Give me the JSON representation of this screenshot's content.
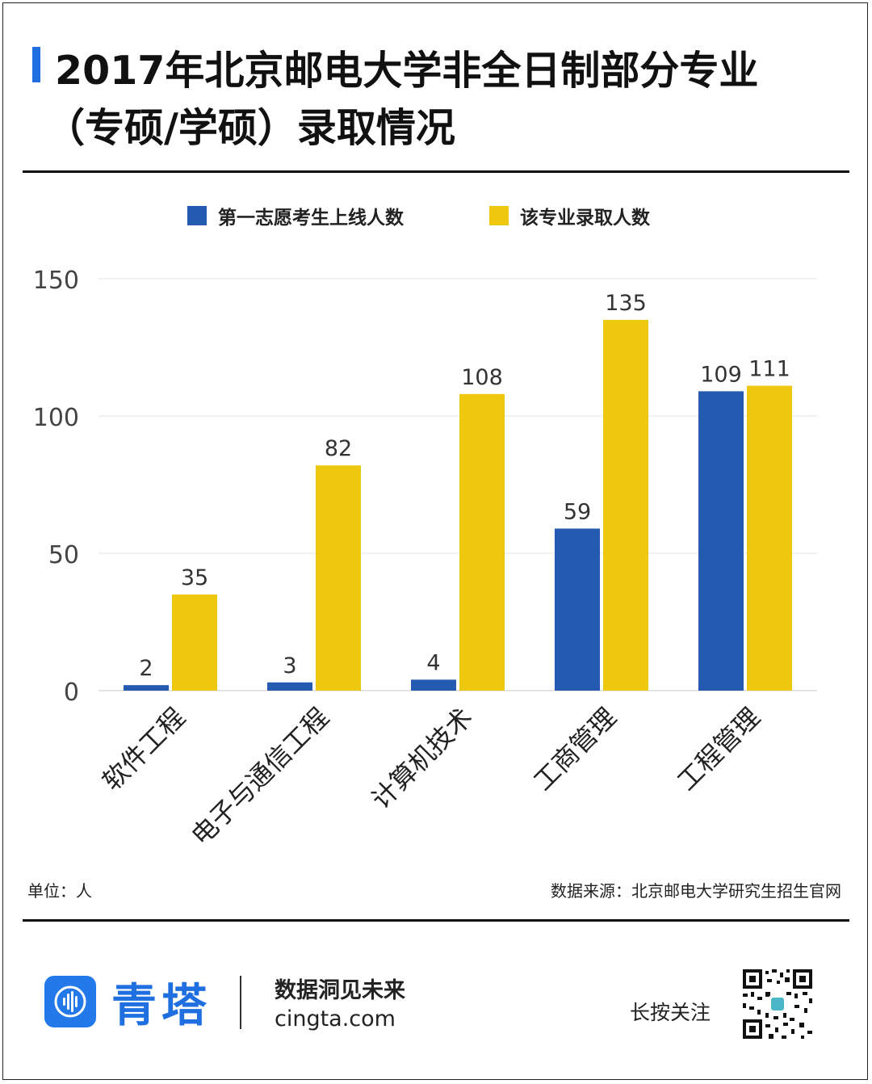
{
  "header": {
    "title_line1": "2017年北京邮电大学非全日制部分专业",
    "title_line2": "（专硕/学硕）录取情况"
  },
  "colors": {
    "accent": "#1f6fe0",
    "series_blue": "#245bb0",
    "series_yellow": "#eec80e"
  },
  "chart_data": {
    "type": "bar",
    "categories": [
      "软件工程",
      "电子与通信工程",
      "计算机技术",
      "工商管理",
      "工程管理"
    ],
    "series": [
      {
        "name": "第一志愿考生上线人数",
        "values": [
          2,
          3,
          4,
          59,
          109
        ],
        "color": "#245bb0"
      },
      {
        "name": "该专业录取人数",
        "values": [
          35,
          82,
          108,
          135,
          111
        ],
        "color": "#eec80e"
      }
    ],
    "ylim": [
      0,
      150
    ],
    "yticks": [
      0,
      50,
      100,
      150
    ],
    "title": "",
    "xlabel": "",
    "ylabel": "",
    "grid": true,
    "legend_position": "top-center"
  },
  "footnotes": {
    "unit": "单位：人",
    "source": "数据来源：北京邮电大学研究生招生官网"
  },
  "footer": {
    "brand": "青塔",
    "slogan": "数据洞见未来",
    "site": "cingta.com",
    "follow": "长按关注"
  },
  "icons": {
    "logo": "sound-wave-logo-icon",
    "qr": "qr-code-icon"
  }
}
